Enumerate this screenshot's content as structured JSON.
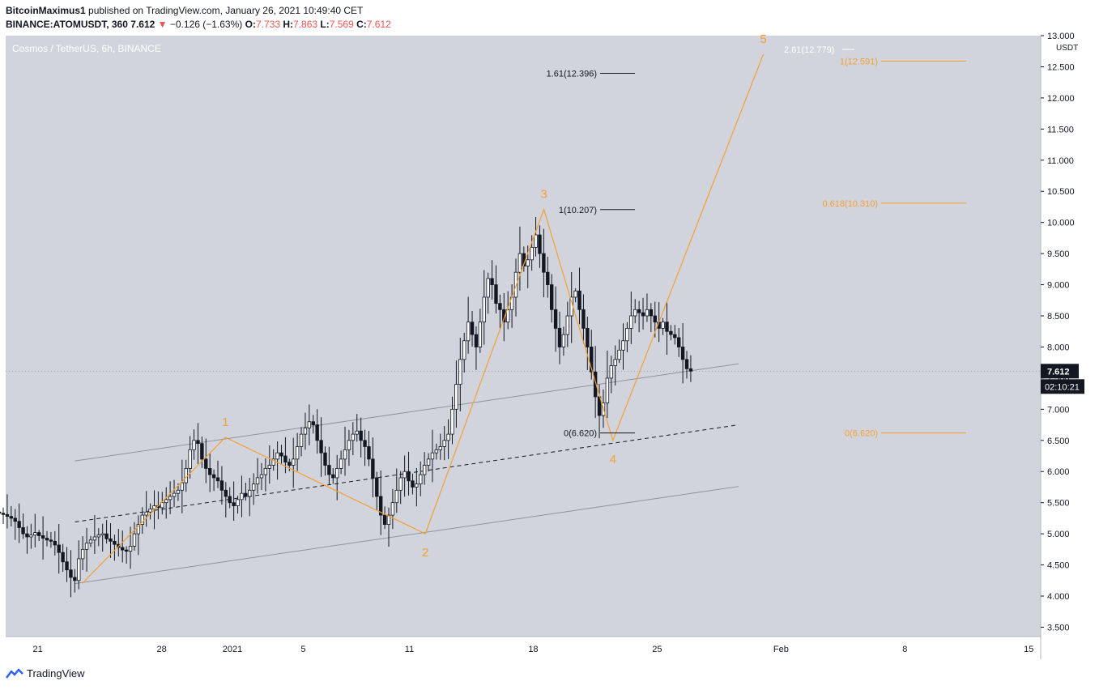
{
  "header": {
    "author": "BitcoinMaximus1",
    "published_text": " published on TradingView.com, January 26, 2021 10:49:40 CET",
    "symbol": "BINANCE:ATOMUSDT, 360",
    "last": "7.612",
    "change": "−0.126 (−1.63%)",
    "o_label": "O:",
    "o_value": "7.733",
    "h_label": "H:",
    "h_value": "7.863",
    "l_label": "L:",
    "l_value": "7.569",
    "c_label": "C:",
    "c_value": "7.612"
  },
  "footer": {
    "brand": "TradingView"
  },
  "colors": {
    "bg_plot": "#d1d4dc",
    "orange": "#f5a033",
    "up": "#ffffff",
    "down": "#131722",
    "channel": "#8f939b"
  },
  "chart_data": {
    "type": "candlestick",
    "title": "Cosmos / TetherUS, 6h, BINANCE",
    "ylabel": "USDT",
    "ylim": [
      3.35,
      13.0
    ],
    "y_ticks": [
      "3.500",
      "4.000",
      "4.500",
      "5.000",
      "5.500",
      "6.000",
      "6.500",
      "7.000",
      "7.500",
      "8.000",
      "8.500",
      "9.000",
      "9.500",
      "10.000",
      "10.500",
      "11.000",
      "11.500",
      "12.000",
      "12.500",
      "13.000"
    ],
    "x_ticks": [
      {
        "label": "21",
        "day": -11
      },
      {
        "label": "28",
        "day": -4
      },
      {
        "label": "2021",
        "day": 0
      },
      {
        "label": "5",
        "day": 4
      },
      {
        "label": "11",
        "day": 10
      },
      {
        "label": "18",
        "day": 17
      },
      {
        "label": "25",
        "day": 24
      },
      {
        "label": "Feb",
        "day": 31
      },
      {
        "label": "8",
        "day": 38
      },
      {
        "label": "15",
        "day": 45
      }
    ],
    "last_price": "7.612",
    "countdown": "02:10:21",
    "waves": [
      {
        "label": "1",
        "day": -0.4,
        "price": 6.55
      },
      {
        "label": "2",
        "day": 10.9,
        "price": 5.0
      },
      {
        "label": "3",
        "day": 17.6,
        "price": 10.21
      },
      {
        "label": "4",
        "day": 21.5,
        "price": 6.5
      },
      {
        "label": "5",
        "day": 30.0,
        "price": 12.7
      }
    ],
    "wave_start": {
      "day": -8.5,
      "price": 4.2
    },
    "fib_black": [
      {
        "text": "1.61(12.396)",
        "price": 12.396
      },
      {
        "text": "1(10.207)",
        "price": 10.207
      },
      {
        "text": "0(6.620)",
        "price": 6.62
      }
    ],
    "fib_orange": [
      {
        "text": "2.61(12.779)",
        "price": 12.779
      },
      {
        "text": "1(12.591)",
        "price": 12.591
      },
      {
        "text": "0.618(10.310)",
        "price": 10.31
      },
      {
        "text": "0(6.620)",
        "price": 6.62
      }
    ],
    "channel": {
      "upper": [
        {
          "day": -8.9,
          "price": 6.17
        },
        {
          "day": 28.6,
          "price": 7.73
        }
      ],
      "middle": [
        {
          "day": -8.9,
          "price": 5.19
        },
        {
          "day": 28.6,
          "price": 6.75
        }
      ],
      "lower": [
        {
          "day": -8.9,
          "price": 4.2
        },
        {
          "day": 28.6,
          "price": 5.76
        }
      ]
    },
    "closes": [
      5.35,
      5.33,
      5.31,
      5.28,
      5.25,
      5.2,
      5.1,
      5.0,
      4.95,
      4.98,
      5.02,
      4.97,
      4.93,
      4.9,
      4.88,
      4.82,
      4.7,
      4.55,
      4.42,
      4.3,
      4.25,
      4.6,
      4.75,
      4.85,
      4.9,
      4.95,
      4.98,
      5.0,
      4.92,
      4.88,
      4.83,
      4.78,
      4.74,
      4.72,
      4.8,
      5.0,
      5.15,
      5.3,
      5.35,
      5.4,
      5.45,
      5.42,
      5.5,
      5.55,
      5.6,
      5.65,
      5.7,
      5.82,
      6.05,
      6.35,
      6.5,
      6.45,
      6.2,
      6.05,
      5.95,
      5.9,
      5.85,
      5.7,
      5.6,
      5.5,
      5.45,
      5.55,
      5.65,
      5.6,
      5.7,
      5.8,
      5.9,
      5.95,
      6.05,
      6.1,
      6.2,
      6.3,
      6.25,
      6.15,
      6.1,
      6.2,
      6.4,
      6.6,
      6.7,
      6.8,
      6.75,
      6.5,
      6.3,
      6.1,
      5.95,
      5.9,
      6.05,
      6.2,
      6.35,
      6.5,
      6.6,
      6.65,
      6.5,
      6.4,
      6.2,
      5.9,
      5.6,
      5.3,
      5.15,
      5.3,
      5.5,
      5.7,
      5.9,
      6.0,
      5.85,
      5.75,
      5.8,
      5.95,
      6.1,
      6.2,
      6.3,
      6.35,
      6.4,
      6.5,
      6.6,
      7.0,
      7.4,
      7.8,
      8.1,
      8.4,
      8.2,
      8.0,
      8.4,
      8.8,
      9.1,
      9.0,
      8.7,
      8.6,
      8.4,
      8.6,
      8.8,
      9.2,
      9.5,
      9.3,
      9.4,
      9.6,
      9.8,
      9.5,
      9.2,
      9.0,
      8.6,
      8.3,
      8.0,
      8.2,
      8.5,
      8.8,
      8.9,
      8.6,
      8.3,
      8.0,
      7.6,
      7.2,
      6.9,
      7.1,
      7.5,
      7.7,
      7.8,
      7.95,
      8.1,
      8.3,
      8.5,
      8.6,
      8.55,
      8.5,
      8.6,
      8.5,
      8.4,
      8.3,
      8.4,
      8.25,
      8.2,
      8.15,
      8.0,
      7.8,
      7.65,
      7.612
    ]
  }
}
